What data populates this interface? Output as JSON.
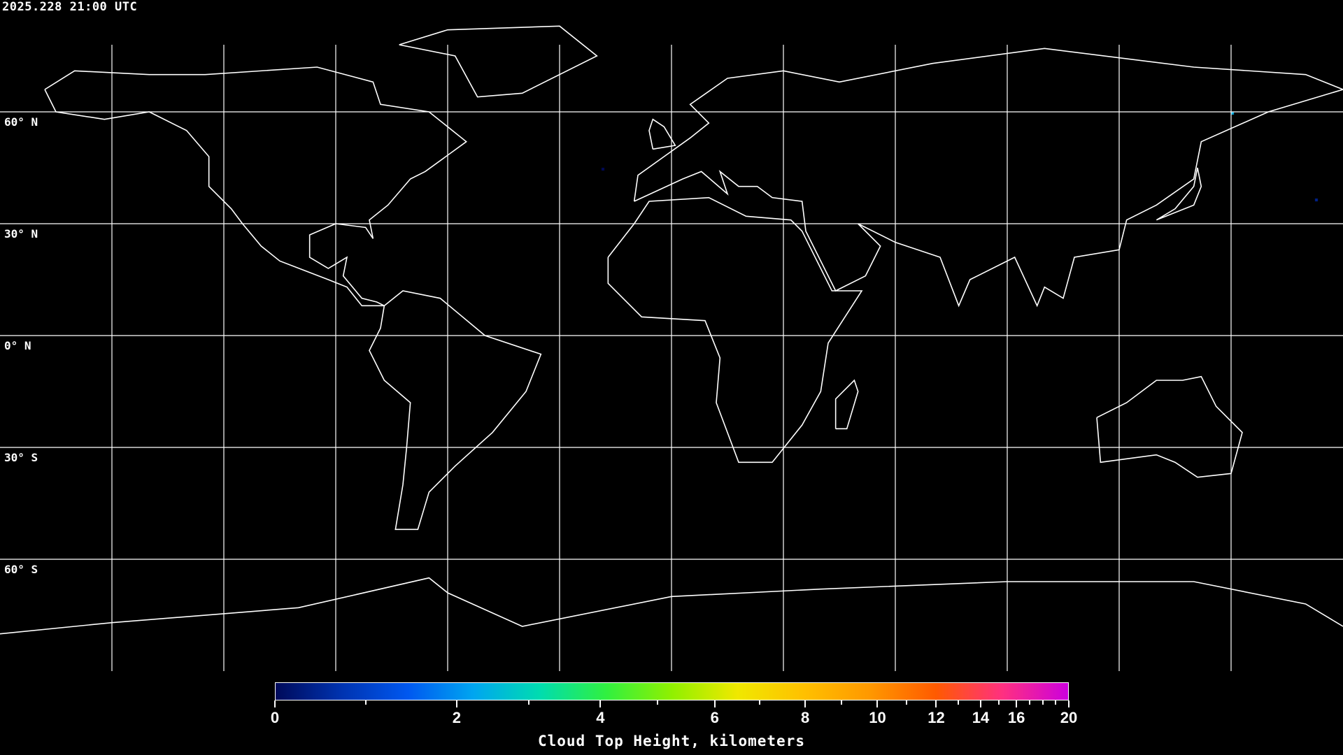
{
  "header": {
    "timestamp": "2025.228 21:00 UTC"
  },
  "map": {
    "projection": "equirectangular",
    "grid_spacing_degrees": 30,
    "lat_labels": [
      "60° N",
      "30° N",
      "0° N",
      "30° S",
      "60° S"
    ],
    "coastline_color": "#ffffff",
    "grid_color": "#ffffff",
    "no_data_color": "#000000"
  },
  "colorbar": {
    "title": "Cloud Top Height, kilometers",
    "range": [
      0,
      20
    ],
    "major_ticks": [
      "0",
      "2",
      "4",
      "6",
      "8",
      "10",
      "12",
      "14",
      "16",
      "20"
    ],
    "minor_ticks": [
      1,
      3,
      5,
      7,
      9,
      11,
      13,
      15,
      17,
      18,
      19
    ],
    "colors": [
      "#000a5a",
      "#0033b0",
      "#0058f0",
      "#00a6f0",
      "#00dcb0",
      "#30f040",
      "#90f000",
      "#f0e800",
      "#ffc000",
      "#ff9800",
      "#ff5a00",
      "#ff3080",
      "#cc00dd"
    ]
  }
}
